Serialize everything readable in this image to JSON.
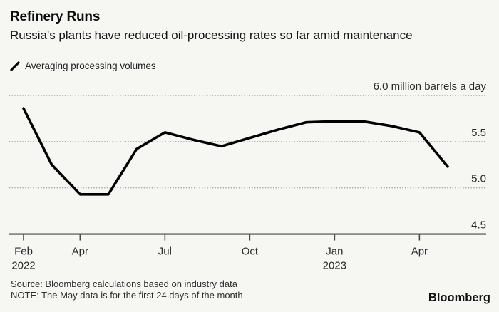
{
  "header": {
    "title": "Refinery Runs",
    "subtitle": "Russia's plants have reduced oil-processing rates so far amid maintenance"
  },
  "legend": {
    "label": "Averaging processing volumes",
    "icon": "line-swatch-icon"
  },
  "footer": {
    "source": "Source: Bloomberg calculations based on industry data",
    "note": "NOTE: The May data is for the first 24 days of the month",
    "brand": "Bloomberg"
  },
  "colors": {
    "background": "#f6f6f3",
    "line": "#000000",
    "grid": "#a2a2a2",
    "axis": "#4a4a4a",
    "axis_text": "#2b2b2b"
  },
  "chart_data": {
    "type": "line",
    "title": "Refinery Runs",
    "subtitle": "Russia's plants have reduced oil-processing rates so far amid maintenance",
    "unit": "million barrels a day",
    "x": [
      "Feb 2022",
      "Mar 2022",
      "Apr 2022",
      "May 2022",
      "Jun 2022",
      "Jul 2022",
      "Aug 2022",
      "Sep 2022",
      "Oct 2022",
      "Nov 2022",
      "Dec 2022",
      "Jan 2023",
      "Feb 2023",
      "Mar 2023",
      "Apr 2023",
      "May 2023"
    ],
    "series": [
      {
        "name": "Averaging processing volumes",
        "values": [
          5.86,
          5.25,
          4.93,
          4.93,
          5.42,
          5.6,
          5.52,
          5.45,
          5.54,
          5.63,
          5.71,
          5.72,
          5.72,
          5.67,
          5.6,
          5.23
        ]
      }
    ],
    "ylim": [
      4.5,
      6.15
    ],
    "grid": "horizontal-dotted",
    "legend_position": "top-left",
    "y_gridlines": [
      {
        "value": 6.0,
        "label": "6.0 million barrels a day"
      },
      {
        "value": 5.5,
        "label": "5.5"
      },
      {
        "value": 5.0,
        "label": "5.0"
      }
    ],
    "y_baseline": {
      "value": 4.5,
      "label": "4.5"
    },
    "x_ticks": [
      {
        "index": 0,
        "label": "Feb",
        "year": "2022"
      },
      {
        "index": 2,
        "label": "Apr"
      },
      {
        "index": 5,
        "label": "Jul"
      },
      {
        "index": 8,
        "label": "Oct"
      },
      {
        "index": 11,
        "label": "Jan",
        "year": "2023"
      },
      {
        "index": 14,
        "label": "Apr"
      }
    ]
  }
}
